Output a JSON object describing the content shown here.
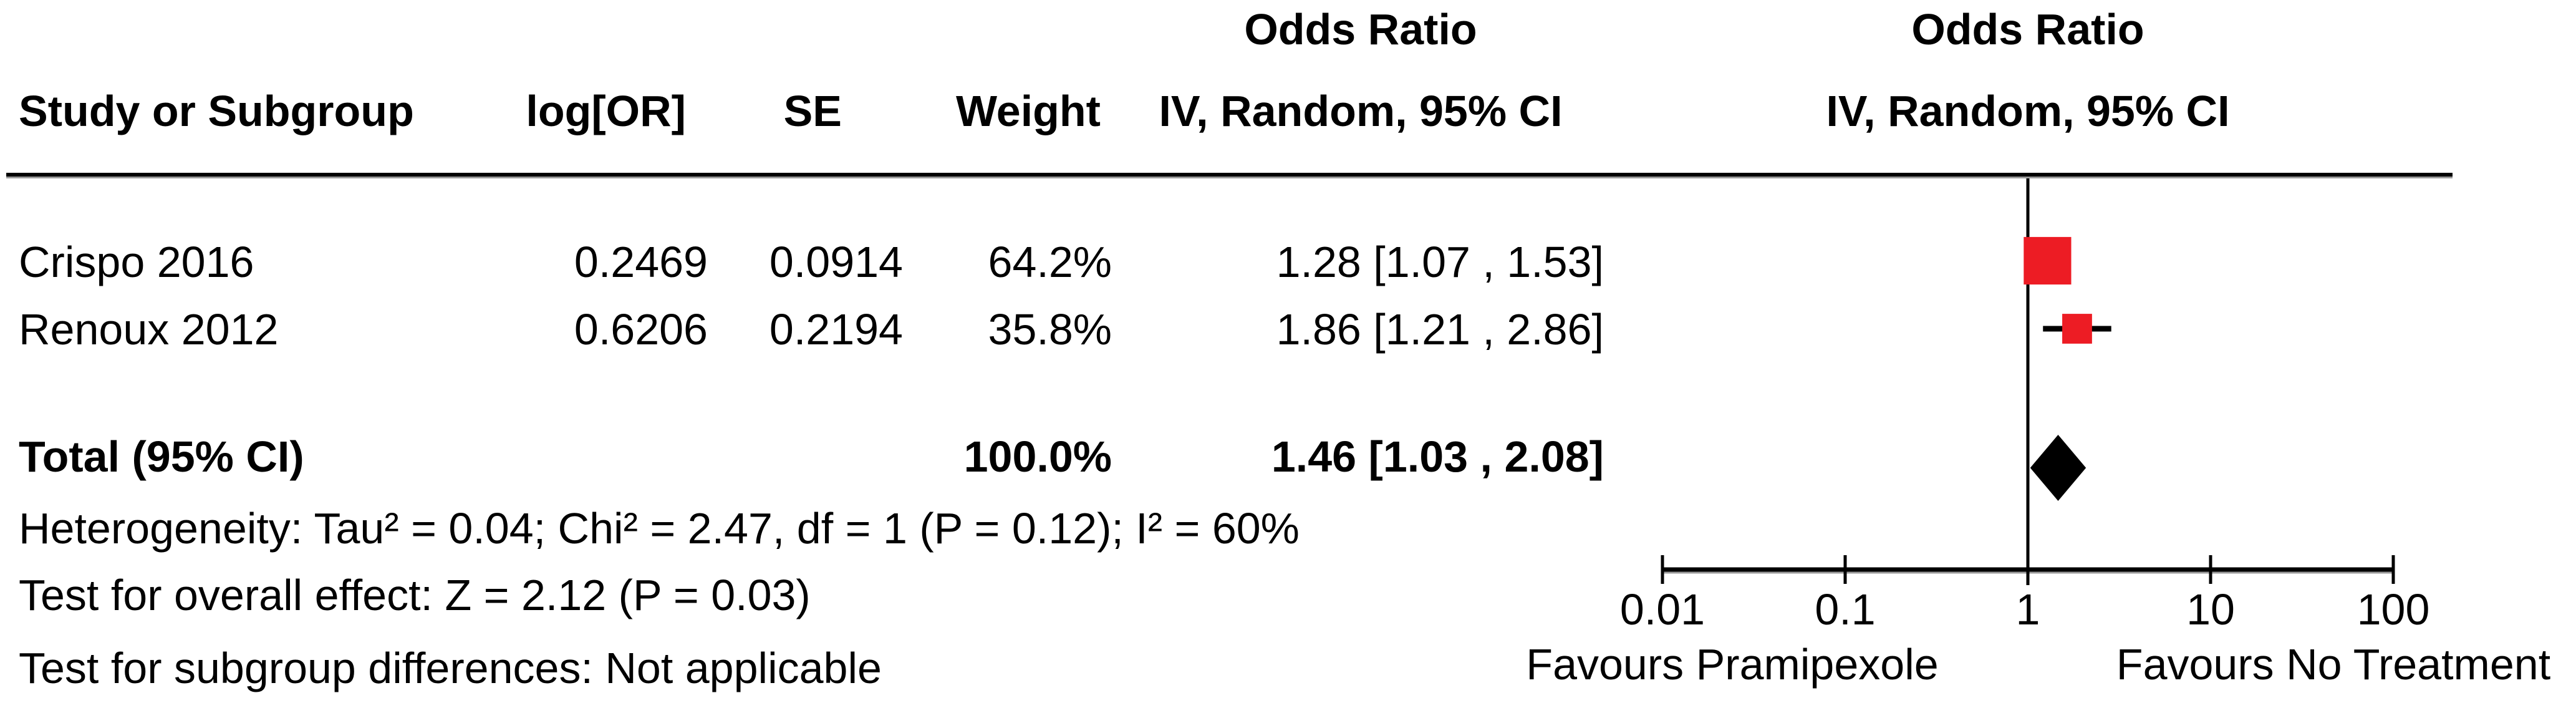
{
  "table": {
    "col_headers_top": {
      "odds_ratio_left": "Odds Ratio",
      "odds_ratio_right": "Odds Ratio"
    },
    "col_headers": {
      "study": "Study or Subgroup",
      "log_or": "log[OR]",
      "se": "SE",
      "weight": "Weight",
      "ci_left": "IV, Random, 95% CI",
      "ci_right": "IV, Random, 95% CI"
    },
    "rows": [
      {
        "study": "Crispo 2016",
        "log_or": "0.2469",
        "se": "0.0914",
        "weight": "64.2%",
        "ci_text": "1.28 [1.07 , 1.53]"
      },
      {
        "study": "Renoux 2012",
        "log_or": "0.6206",
        "se": "0.2194",
        "weight": "35.8%",
        "ci_text": "1.86 [1.21 , 2.86]"
      }
    ],
    "total": {
      "label": "Total (95% CI)",
      "weight": "100.0%",
      "ci_text": "1.46 [1.03 , 2.08]"
    }
  },
  "footnotes": {
    "heterogeneity": "Heterogeneity: Tau² = 0.04; Chi² = 2.47, df = 1 (P = 0.12); I² = 60%",
    "overall_effect": "Test for overall effect: Z = 2.12 (P = 0.03)",
    "subgroup_differences": "Test for subgroup differences: Not applicable"
  },
  "chart_data": {
    "type": "forest",
    "effect_measure": "Odds Ratio",
    "model": "IV, Random, 95% CI",
    "scale": "log10",
    "axis_range": [
      0.01,
      100
    ],
    "null_line": 1,
    "x_ticks": [
      0.01,
      0.1,
      1,
      10,
      100
    ],
    "x_tick_labels": [
      "0.01",
      "0.1",
      "1",
      "10",
      "100"
    ],
    "studies": [
      {
        "name": "Crispo 2016",
        "or": 1.28,
        "ci_low": 1.07,
        "ci_high": 1.53,
        "weight_pct": 64.2
      },
      {
        "name": "Renoux 2012",
        "or": 1.86,
        "ci_low": 1.21,
        "ci_high": 2.86,
        "weight_pct": 35.8
      }
    ],
    "total": {
      "or": 1.46,
      "ci_low": 1.03,
      "ci_high": 2.08,
      "weight_pct": 100.0
    },
    "favours_left": "Favours Pramipexole",
    "favours_right": "Favours No Treatment",
    "marker_color": "#ED1C24",
    "diamond_color": "#000000",
    "line_color": "#000000"
  }
}
